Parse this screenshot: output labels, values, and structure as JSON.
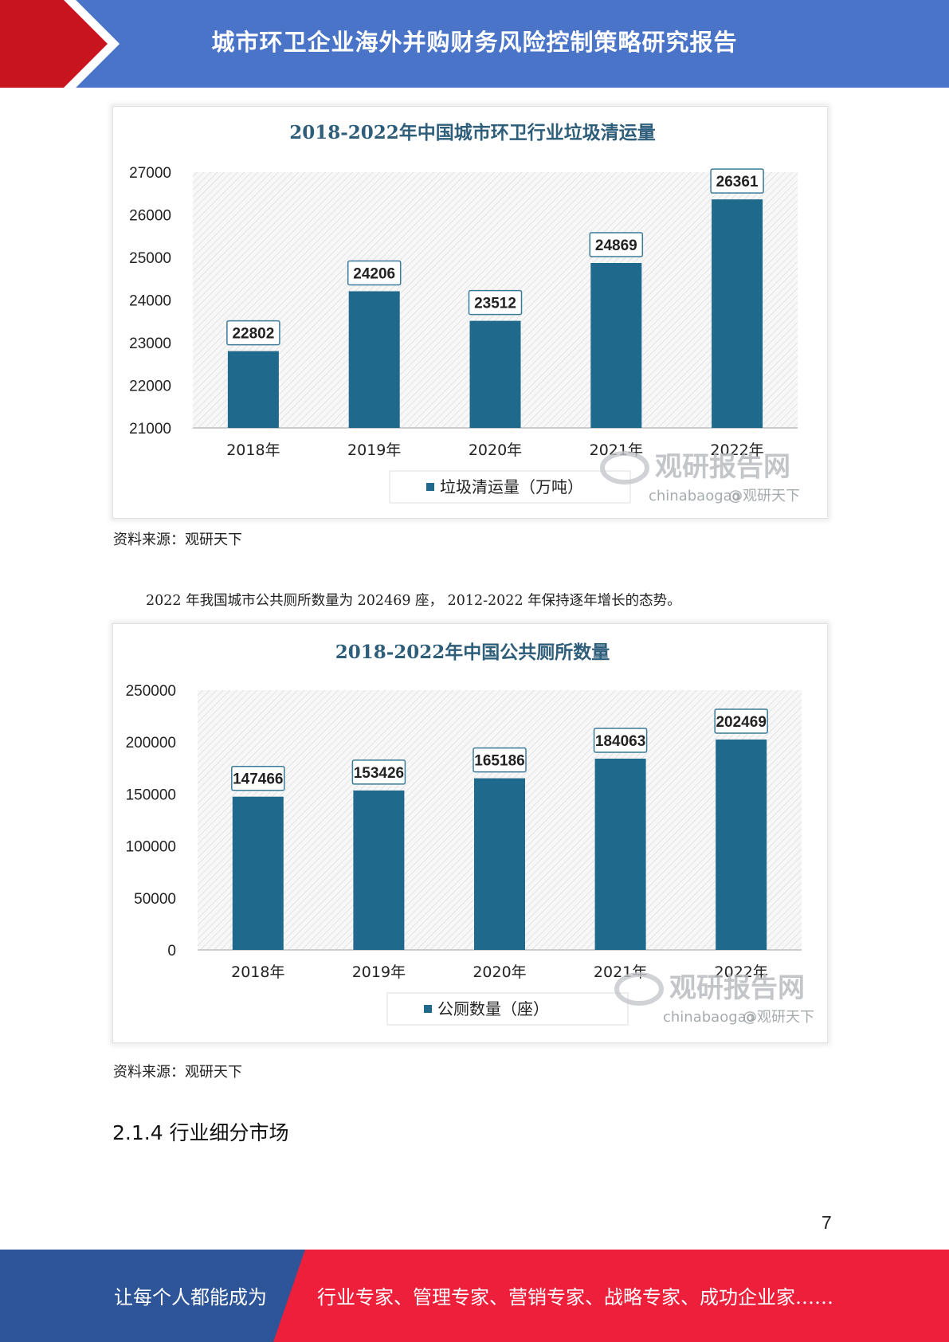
{
  "header": {
    "title": "城市环卫企业海外并购财务风险控制策略研究报告"
  },
  "colors": {
    "header_bg": "#4a74c8",
    "header_arrow": "#c8141e",
    "bar": "#1f6a8c",
    "footer_left": "#2e5598",
    "footer_right": "#ee1f3a"
  },
  "charts": [
    {
      "chart_data": {
        "type": "bar",
        "title": "2018-2022年中国城市环卫行业垃圾清运量",
        "categories": [
          "2018年",
          "2019年",
          "2020年",
          "2021年",
          "2022年"
        ],
        "series": [
          {
            "name": "垃圾清运量（万吨）",
            "values": [
              22802,
              24206,
              23512,
              24869,
              26361
            ]
          }
        ],
        "ylim": [
          21000,
          27000
        ],
        "yticks": [
          27000,
          26000,
          25000,
          24000,
          23000,
          22000,
          21000
        ],
        "legend": "bottom",
        "grid": false
      },
      "watermark": {
        "brand": "观研报告网",
        "site": "chinabaogao",
        "handle": "@观研天下"
      },
      "source": "资料来源：观研天下"
    },
    {
      "chart_data": {
        "type": "bar",
        "title": "2018-2022年中国公共厕所数量",
        "categories": [
          "2018年",
          "2019年",
          "2020年",
          "2021年",
          "2022年"
        ],
        "series": [
          {
            "name": "公厕数量（座）",
            "values": [
              147466,
              153426,
              165186,
              184063,
              202469
            ]
          }
        ],
        "ylim": [
          0,
          250000
        ],
        "yticks": [
          250000,
          200000,
          150000,
          100000,
          50000,
          0
        ],
        "legend": "bottom",
        "grid": false
      },
      "watermark": {
        "brand": "观研报告网",
        "site": "chinabaogao",
        "handle": "@观研天下"
      },
      "source": "资料来源：观研天下"
    }
  ],
  "paragraph": "2022 年我国城市公共厕所数量为 202469 座， 2012-2022 年保持逐年增长的态势。",
  "section_heading": "2.1.4 行业细分市场",
  "page_number": "7",
  "footer": {
    "slogan_left": "让每个人都能成为",
    "slogan_right": "行业专家、管理专家、营销专家、战略专家、成功企业家……"
  }
}
